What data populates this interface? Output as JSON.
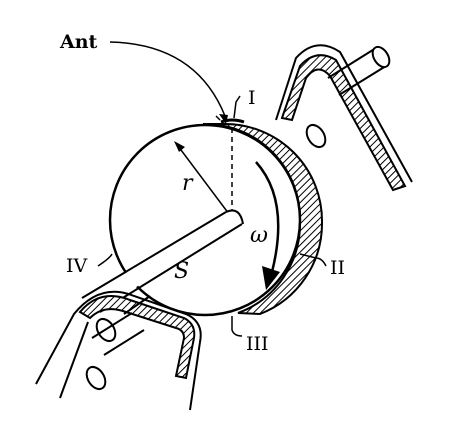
{
  "labels": {
    "ant": "Ant",
    "zone_1": "I",
    "zone_2": "II",
    "zone_3": "III",
    "zone_4": "IV",
    "radius": "r",
    "shaft": "S",
    "angular_velocity": "ω"
  }
}
